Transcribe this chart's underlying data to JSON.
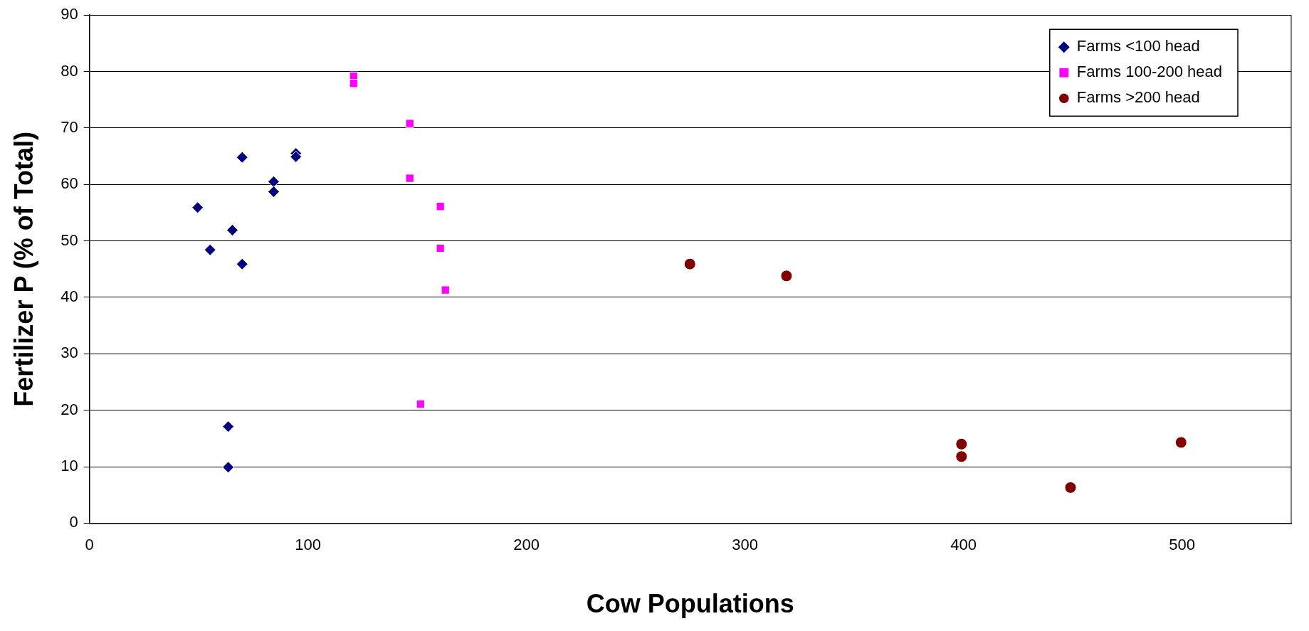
{
  "chart_data": {
    "type": "scatter",
    "xlabel": "Cow Populations",
    "ylabel": "Fertilizer P (% of Total)",
    "xlim": [
      0,
      550
    ],
    "xticks": [
      0,
      100,
      200,
      300,
      400,
      500
    ],
    "ylim": [
      0,
      90
    ],
    "yticks": [
      0,
      10,
      20,
      30,
      40,
      50,
      60,
      70,
      80,
      90
    ],
    "grid": "y",
    "legend": "top right",
    "series": [
      {
        "name": "Farms <100 head",
        "color": "#000080",
        "marker": "diamond",
        "x": [
          49.5,
          55.2,
          65.4,
          69.9,
          69.9,
          84.3,
          84.3,
          94.5,
          94.5,
          63.5,
          63.5
        ],
        "values": [
          55.9,
          48.4,
          51.9,
          64.8,
          45.9,
          60.5,
          58.7,
          65.5,
          64.9,
          17.1,
          9.9
        ]
      },
      {
        "name": "Farms 100-200 head",
        "color": "#ff00ff",
        "marker": "square",
        "x": [
          120.9,
          120.9,
          146.6,
          146.6,
          160.6,
          160.6,
          162.9,
          151.5
        ],
        "values": [
          79.2,
          77.9,
          70.8,
          61.1,
          56.1,
          48.7,
          41.3,
          21.1
        ]
      },
      {
        "name": "Farms >200 head",
        "color": "#800000",
        "marker": "circle",
        "x": [
          274.8,
          319,
          399.1,
          399.1,
          449,
          499.6
        ],
        "values": [
          45.9,
          43.8,
          14.0,
          11.8,
          6.3,
          14.3
        ]
      }
    ]
  }
}
